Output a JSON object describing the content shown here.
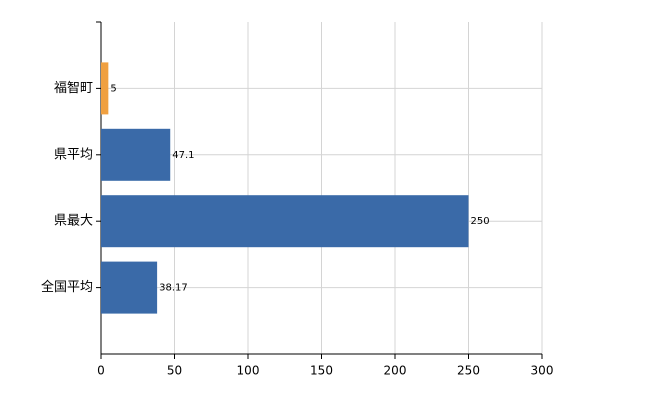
{
  "chart_data": {
    "type": "hbar",
    "categories": [
      "福智町",
      "県平均",
      "県最大",
      "全国平均"
    ],
    "values": [
      5,
      47.1,
      250,
      38.17
    ],
    "colors": [
      "#f0a040",
      "#3a6aa8",
      "#3a6aa8",
      "#3a6aa8"
    ],
    "xlim": [
      0,
      300
    ],
    "xticks": [
      0,
      50,
      100,
      150,
      200,
      250,
      300
    ],
    "grid": true
  }
}
